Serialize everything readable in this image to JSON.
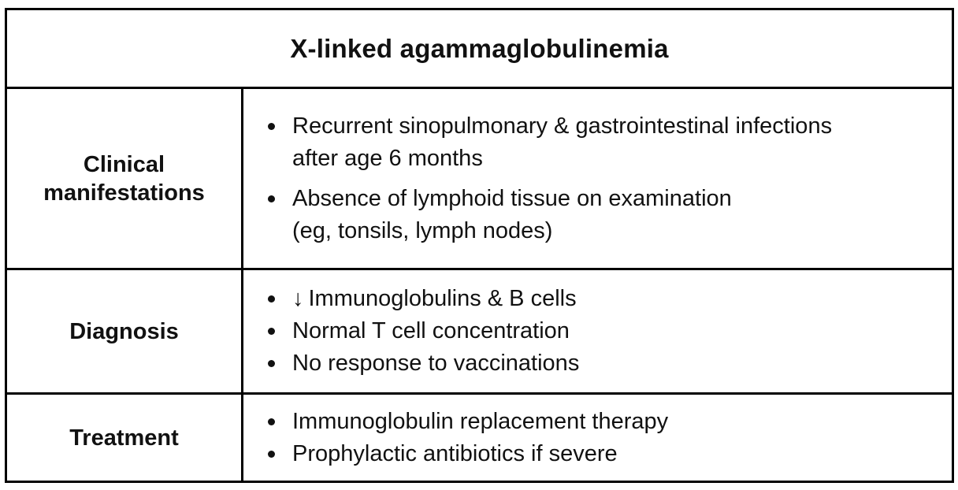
{
  "title": "X-linked agammaglobulinemia",
  "rows": [
    {
      "label_lines": [
        "Clinical",
        "manifestations"
      ],
      "items": [
        {
          "lines": [
            "Recurrent sinopulmonary & gastrointestinal infections",
            "after age 6 months"
          ]
        },
        {
          "lines": [
            "Absence of lymphoid tissue on examination",
            "(eg, tonsils, lymph nodes)"
          ]
        }
      ]
    },
    {
      "label_lines": [
        "Diagnosis"
      ],
      "items": [
        {
          "arrow": "↓",
          "lines": [
            "Immunoglobulins & B cells"
          ]
        },
        {
          "lines": [
            "Normal T cell concentration"
          ]
        },
        {
          "lines": [
            "No response to vaccinations"
          ]
        }
      ]
    },
    {
      "label_lines": [
        "Treatment"
      ],
      "items": [
        {
          "lines": [
            "Immunoglobulin replacement therapy"
          ]
        },
        {
          "lines": [
            "Prophylactic antibiotics if severe"
          ]
        }
      ]
    }
  ]
}
